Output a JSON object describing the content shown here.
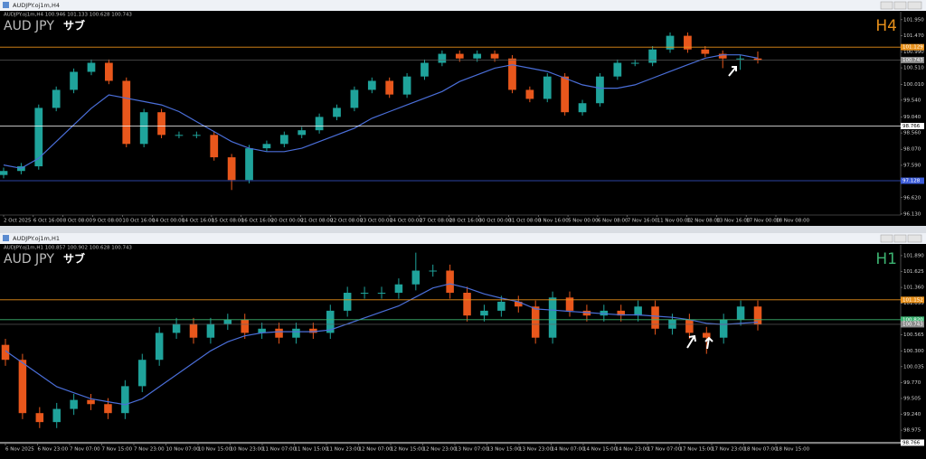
{
  "windows": [
    {
      "title": "AUDJPY.oj1m,H4",
      "info": "AUDJPY.oj1m,H4 100.946 101.133 100.628 100.743",
      "symbol": "AUD JPY",
      "sub": "サブ",
      "timeframe": "H4",
      "timeframe_color": "#e8901a",
      "ylim": [
        96.1,
        102.19
      ],
      "yticks": [
        {
          "value": 101.95,
          "label": "101.950"
        },
        {
          "value": 101.47,
          "label": "101.470"
        },
        {
          "value": 100.99,
          "label": "100.990"
        },
        {
          "value": 100.51,
          "label": "100.510"
        },
        {
          "value": 100.01,
          "label": "100.010"
        },
        {
          "value": 99.54,
          "label": "99.540"
        },
        {
          "value": 99.04,
          "label": "99.040"
        },
        {
          "value": 98.56,
          "label": "98.560"
        },
        {
          "value": 98.07,
          "label": "98.070"
        },
        {
          "value": 97.59,
          "label": "97.590"
        },
        {
          "value": 97.1,
          "label": "97.100"
        },
        {
          "value": 96.62,
          "label": "96.620"
        },
        {
          "value": 96.13,
          "label": "96.130"
        }
      ],
      "levels": [
        {
          "value": 101.129,
          "label": "101.129",
          "color": "#e8901a"
        },
        {
          "value": 98.766,
          "label": "98.766",
          "color": "#ffffff"
        },
        {
          "value": 97.128,
          "label": "97.128",
          "color": "#3b5bd8"
        }
      ],
      "current": 100.743,
      "dates": [
        "2 Oct 2025",
        "6 Oct 16:00",
        "8 Oct 08:00",
        "9 Oct 08:00",
        "10 Oct 16:00",
        "14 Oct 00:00",
        "14 Oct 16:00",
        "15 Oct 08:00",
        "16 Oct 16:00",
        "20 Oct 00:00",
        "21 Oct 08:00",
        "22 Oct 08:00",
        "23 Oct 00:00",
        "24 Oct 00:00",
        "27 Oct 08:00",
        "28 Oct 16:00",
        "30 Oct 00:00",
        "31 Oct 08:00",
        "3 Nov 16:00",
        "5 Nov 00:00",
        "6 Nov 08:00",
        "7 Nov 16:00",
        "11 Nov 00:00",
        "12 Nov 08:00",
        "13 Nov 16:00",
        "17 Nov 00:00",
        "18 Nov 08:00"
      ],
      "candles": [
        [
          97.3,
          97.52,
          97.2,
          97.42
        ],
        [
          97.42,
          97.66,
          97.32,
          97.56
        ],
        [
          97.56,
          99.41,
          97.46,
          99.31
        ],
        [
          99.31,
          99.95,
          99.21,
          99.85
        ],
        [
          99.85,
          100.49,
          99.75,
          100.39
        ],
        [
          100.39,
          100.76,
          100.29,
          100.66
        ],
        [
          100.66,
          100.76,
          100.02,
          100.12
        ],
        [
          100.12,
          100.22,
          98.13,
          98.23
        ],
        [
          98.23,
          99.28,
          98.13,
          99.18
        ],
        [
          99.18,
          99.28,
          98.4,
          98.5
        ],
        [
          98.5,
          98.6,
          98.4,
          98.5
        ],
        [
          98.5,
          98.6,
          98.4,
          98.5
        ],
        [
          98.5,
          98.6,
          97.73,
          97.83
        ],
        [
          97.83,
          97.93,
          96.85,
          97.15
        ],
        [
          97.15,
          98.2,
          97.05,
          98.1
        ],
        [
          98.1,
          98.33,
          98.0,
          98.23
        ],
        [
          98.23,
          98.6,
          98.13,
          98.5
        ],
        [
          98.5,
          98.74,
          98.4,
          98.64
        ],
        [
          98.64,
          99.14,
          98.54,
          99.04
        ],
        [
          99.04,
          99.41,
          98.94,
          99.31
        ],
        [
          99.31,
          99.95,
          99.21,
          99.85
        ],
        [
          99.85,
          100.22,
          99.75,
          100.12
        ],
        [
          100.12,
          100.22,
          99.61,
          99.71
        ],
        [
          99.71,
          100.35,
          99.61,
          100.25
        ],
        [
          100.25,
          100.76,
          100.15,
          100.66
        ],
        [
          100.66,
          101.03,
          100.56,
          100.93
        ],
        [
          100.93,
          101.03,
          100.69,
          100.79
        ],
        [
          100.79,
          101.03,
          100.69,
          100.93
        ],
        [
          100.93,
          101.03,
          100.69,
          100.79
        ],
        [
          100.79,
          100.89,
          99.75,
          99.85
        ],
        [
          99.85,
          99.95,
          99.48,
          99.58
        ],
        [
          99.58,
          100.35,
          99.48,
          100.25
        ],
        [
          100.25,
          100.35,
          99.08,
          99.18
        ],
        [
          99.18,
          99.55,
          99.08,
          99.45
        ],
        [
          99.45,
          100.35,
          99.35,
          100.25
        ],
        [
          100.25,
          100.76,
          100.15,
          100.66
        ],
        [
          100.66,
          100.76,
          100.56,
          100.66
        ],
        [
          100.66,
          101.16,
          100.56,
          101.06
        ],
        [
          101.06,
          101.57,
          100.96,
          101.47
        ],
        [
          101.47,
          101.57,
          100.96,
          101.06
        ],
        [
          101.06,
          101.16,
          100.83,
          100.93
        ],
        [
          100.93,
          101.03,
          100.5,
          100.79
        ],
        [
          100.79,
          100.89,
          100.45,
          100.79
        ],
        [
          100.79,
          101.0,
          100.64,
          100.74
        ]
      ],
      "ma": [
        97.6,
        97.5,
        97.8,
        98.3,
        98.8,
        99.3,
        99.7,
        99.6,
        99.5,
        99.4,
        99.2,
        98.9,
        98.6,
        98.3,
        98.1,
        98.0,
        98.0,
        98.1,
        98.3,
        98.5,
        98.7,
        99.0,
        99.2,
        99.4,
        99.6,
        99.8,
        100.1,
        100.3,
        100.5,
        100.6,
        100.5,
        100.4,
        100.2,
        100.0,
        99.9,
        99.9,
        100.0,
        100.2,
        100.4,
        100.6,
        100.8,
        100.9,
        100.9,
        100.8
      ]
    },
    {
      "title": "AUDJPY.oj1m,H1",
      "info": "AUDJPY.oj1m,H1 100.857 100.902 100.628 100.743",
      "symbol": "AUD JPY",
      "sub": "サブ",
      "timeframe": "H1",
      "timeframe_color": "#3cb371",
      "ylim": [
        98.75,
        102.07
      ],
      "yticks": [
        {
          "value": 101.89,
          "label": "101.890"
        },
        {
          "value": 101.625,
          "label": "101.625"
        },
        {
          "value": 101.36,
          "label": "101.360"
        },
        {
          "value": 101.095,
          "label": "101.095"
        },
        {
          "value": 100.83,
          "label": "100.830"
        },
        {
          "value": 100.565,
          "label": "100.565"
        },
        {
          "value": 100.3,
          "label": "100.300"
        },
        {
          "value": 100.035,
          "label": "100.035"
        },
        {
          "value": 99.77,
          "label": "99.770"
        },
        {
          "value": 99.505,
          "label": "99.505"
        },
        {
          "value": 99.24,
          "label": "99.240"
        },
        {
          "value": 98.975,
          "label": "98.975"
        }
      ],
      "levels": [
        {
          "value": 101.152,
          "label": "101.152",
          "color": "#e8901a"
        },
        {
          "value": 100.82,
          "label": "100.820",
          "color": "#3cb371"
        },
        {
          "value": 98.766,
          "label": "98.766",
          "color": "#ffffff"
        }
      ],
      "current": 100.743,
      "dates": [
        "6 Nov 2025",
        "6 Nov 23:00",
        "7 Nov 07:00",
        "7 Nov 15:00",
        "7 Nov 23:00",
        "10 Nov 07:00",
        "10 Nov 15:00",
        "10 Nov 23:00",
        "11 Nov 07:00",
        "11 Nov 15:00",
        "11 Nov 23:00",
        "12 Nov 07:00",
        "12 Nov 15:00",
        "12 Nov 23:00",
        "13 Nov 07:00",
        "13 Nov 15:00",
        "13 Nov 23:00",
        "14 Nov 07:00",
        "14 Nov 15:00",
        "14 Nov 23:00",
        "17 Nov 07:00",
        "17 Nov 15:00",
        "17 Nov 23:00",
        "18 Nov 07:00",
        "18 Nov 15:00"
      ],
      "candles": [
        [
          100.4,
          100.5,
          100.05,
          100.15
        ],
        [
          100.15,
          100.25,
          99.16,
          99.26
        ],
        [
          99.26,
          99.36,
          99.01,
          99.11
        ],
        [
          99.11,
          99.43,
          99.01,
          99.33
        ],
        [
          99.33,
          99.58,
          99.23,
          99.48
        ],
        [
          99.48,
          99.58,
          99.31,
          99.41
        ],
        [
          99.41,
          99.51,
          99.16,
          99.26
        ],
        [
          99.26,
          99.81,
          99.16,
          99.71
        ],
        [
          99.71,
          100.25,
          99.61,
          100.15
        ],
        [
          100.15,
          100.7,
          100.05,
          100.6
        ],
        [
          100.6,
          100.85,
          100.5,
          100.75
        ],
        [
          100.75,
          100.85,
          100.42,
          100.52
        ],
        [
          100.52,
          100.85,
          100.42,
          100.75
        ],
        [
          100.75,
          100.92,
          100.65,
          100.82
        ],
        [
          100.82,
          100.92,
          100.5,
          100.6
        ],
        [
          100.6,
          100.77,
          100.5,
          100.67
        ],
        [
          100.67,
          100.77,
          100.42,
          100.52
        ],
        [
          100.52,
          100.77,
          100.42,
          100.67
        ],
        [
          100.67,
          100.77,
          100.5,
          100.6
        ],
        [
          100.6,
          101.07,
          100.5,
          100.97
        ],
        [
          100.97,
          101.37,
          100.87,
          101.27
        ],
        [
          101.27,
          101.37,
          101.17,
          101.27
        ],
        [
          101.27,
          101.37,
          101.17,
          101.27
        ],
        [
          101.27,
          101.51,
          101.17,
          101.41
        ],
        [
          101.41,
          101.94,
          101.31,
          101.64
        ],
        [
          101.64,
          101.74,
          101.54,
          101.64
        ],
        [
          101.64,
          101.74,
          101.17,
          101.27
        ],
        [
          101.27,
          101.37,
          100.79,
          100.89
        ],
        [
          100.89,
          101.07,
          100.79,
          100.97
        ],
        [
          100.97,
          101.22,
          100.87,
          101.12
        ],
        [
          101.12,
          101.22,
          100.94,
          101.04
        ],
        [
          101.04,
          101.14,
          100.42,
          100.52
        ],
        [
          100.52,
          101.29,
          100.42,
          101.19
        ],
        [
          101.19,
          101.29,
          100.87,
          100.97
        ],
        [
          100.97,
          101.07,
          100.79,
          100.89
        ],
        [
          100.89,
          101.07,
          100.79,
          100.97
        ],
        [
          100.97,
          101.07,
          100.79,
          100.89
        ],
        [
          100.89,
          101.14,
          100.79,
          101.04
        ],
        [
          101.04,
          101.14,
          100.57,
          100.67
        ],
        [
          100.67,
          100.92,
          100.57,
          100.82
        ],
        [
          100.82,
          100.92,
          100.5,
          100.6
        ],
        [
          100.6,
          100.7,
          100.25,
          100.52
        ],
        [
          100.52,
          100.92,
          100.42,
          100.82
        ],
        [
          100.82,
          101.14,
          100.72,
          101.04
        ],
        [
          101.04,
          101.14,
          100.64,
          100.74
        ]
      ],
      "ma": [
        100.3,
        100.1,
        99.9,
        99.7,
        99.6,
        99.5,
        99.45,
        99.4,
        99.5,
        99.7,
        99.9,
        100.1,
        100.3,
        100.45,
        100.55,
        100.6,
        100.62,
        100.62,
        100.62,
        100.65,
        100.75,
        100.85,
        100.95,
        101.05,
        101.2,
        101.35,
        101.42,
        101.35,
        101.25,
        101.18,
        101.12,
        101.0,
        100.98,
        100.96,
        100.94,
        100.92,
        100.9,
        100.9,
        100.88,
        100.86,
        100.82,
        100.76,
        100.74,
        100.76,
        100.78
      ]
    }
  ]
}
